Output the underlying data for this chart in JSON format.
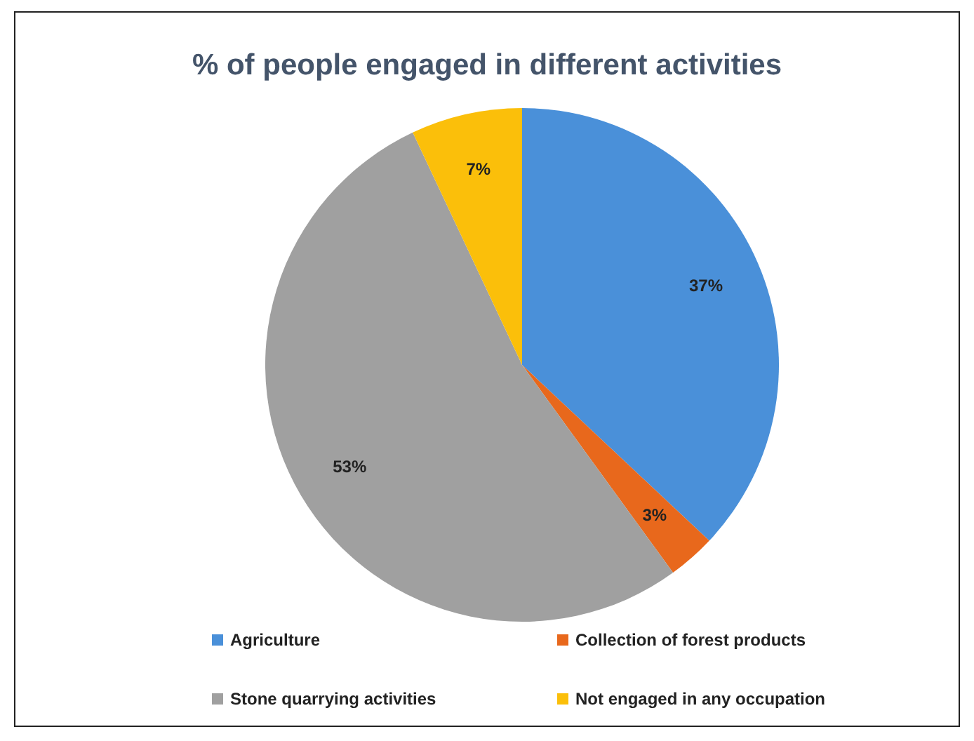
{
  "chart_data": {
    "type": "pie",
    "title": "% of people engaged in different activities",
    "categories": [
      "Agriculture",
      "Collection of forest products",
      "Stone quarrying activities",
      "Not engaged in any occupation"
    ],
    "values": [
      37,
      3,
      53,
      7
    ],
    "colors": [
      "#4a90d9",
      "#e8681c",
      "#a0a0a0",
      "#fbbf0a"
    ],
    "value_labels": [
      "37%",
      "3%",
      "53%",
      "7%"
    ],
    "legend": "bottom"
  }
}
